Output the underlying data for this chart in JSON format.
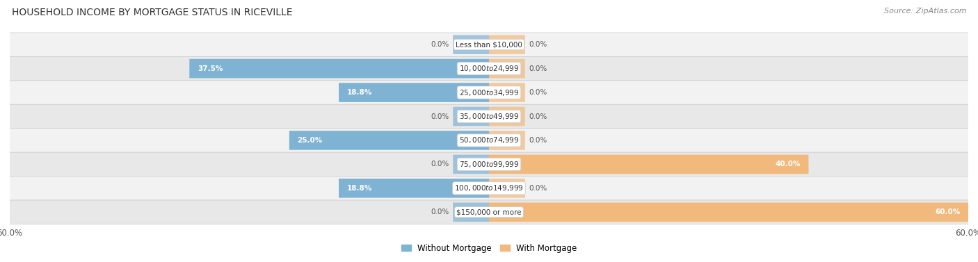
{
  "title": "HOUSEHOLD INCOME BY MORTGAGE STATUS IN RICEVILLE",
  "source": "Source: ZipAtlas.com",
  "categories": [
    "Less than $10,000",
    "$10,000 to $24,999",
    "$25,000 to $34,999",
    "$35,000 to $49,999",
    "$50,000 to $74,999",
    "$75,000 to $99,999",
    "$100,000 to $149,999",
    "$150,000 or more"
  ],
  "without_mortgage": [
    0.0,
    37.5,
    18.8,
    0.0,
    25.0,
    0.0,
    18.8,
    0.0
  ],
  "with_mortgage": [
    0.0,
    0.0,
    0.0,
    0.0,
    0.0,
    40.0,
    0.0,
    60.0
  ],
  "without_mortgage_color": "#7fb3d3",
  "with_mortgage_color": "#f2b97c",
  "row_bg_color_light": "#f2f2f2",
  "row_bg_color_dark": "#e8e8e8",
  "fig_bg_color": "#ffffff",
  "label_color_outside": "#555555",
  "label_color_inside": "#ffffff",
  "axis_limit": 60.0,
  "title_fontsize": 10,
  "source_fontsize": 8,
  "legend_fontsize": 8.5,
  "tick_fontsize": 8.5,
  "bar_label_fontsize": 7.5,
  "category_fontsize": 7.5,
  "stub_size": 4.5
}
